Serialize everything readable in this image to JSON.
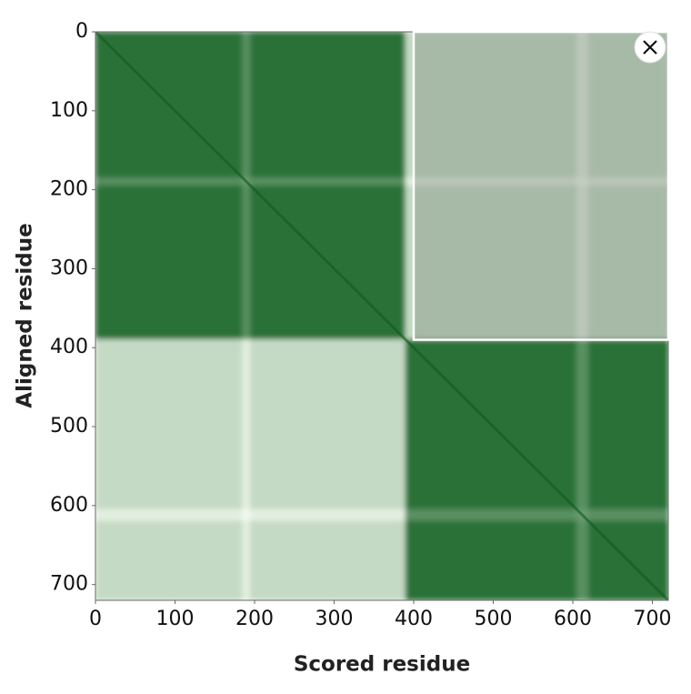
{
  "chart_data": {
    "type": "heatmap",
    "xlabel": "Scored residue",
    "ylabel": "Aligned residue",
    "xlim": [
      0,
      720
    ],
    "ylim": [
      0,
      720
    ],
    "xticks": [
      0,
      100,
      200,
      300,
      400,
      500,
      600,
      700
    ],
    "yticks": [
      0,
      100,
      200,
      300,
      400,
      500,
      600,
      700
    ],
    "bins": [
      0,
      185,
      195,
      390,
      605,
      620,
      720
    ],
    "values": [
      [
        4,
        10,
        4,
        24,
        28,
        24
      ],
      [
        10,
        12,
        10,
        28,
        30,
        28
      ],
      [
        4,
        10,
        4,
        24,
        28,
        24
      ],
      [
        24,
        28,
        24,
        4,
        10,
        4
      ],
      [
        28,
        30,
        28,
        10,
        12,
        10
      ],
      [
        24,
        28,
        24,
        4,
        10,
        4
      ]
    ],
    "zlim": [
      0,
      30
    ],
    "colors": [
      "#0d5c1c",
      "#f2f9ee"
    ],
    "selection": {
      "xlim": [
        400,
        720
      ],
      "ylim": [
        0,
        390
      ]
    }
  }
}
